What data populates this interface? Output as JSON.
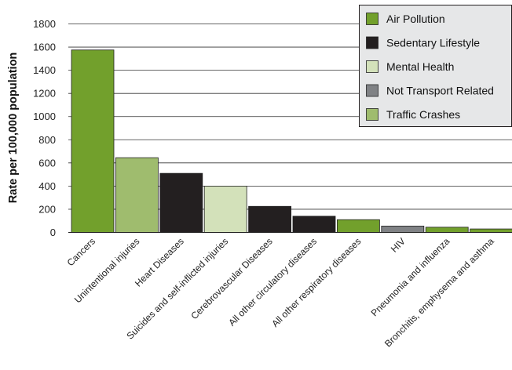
{
  "chart_data": {
    "type": "bar",
    "ylabel": "Rate per 100,000 population",
    "xlabel": "",
    "ylim": [
      0,
      1800
    ],
    "yticks": [
      0,
      200,
      400,
      600,
      800,
      1000,
      1200,
      1400,
      1600,
      1800
    ],
    "grid": "horizontal",
    "legend_position": "top-right",
    "legend": [
      {
        "label": "Air Pollution",
        "color": "#72a02c"
      },
      {
        "label": "Sedentary Lifestyle",
        "color": "#231f20"
      },
      {
        "label": "Mental Health",
        "color": "#d3e1ba"
      },
      {
        "label": "Not Transport Related",
        "color": "#808285"
      },
      {
        "label": "Traffic Crashes",
        "color": "#9fbc6e"
      }
    ],
    "categories": [
      "Cancers",
      "Unintentional injuries",
      "Heart Diseases",
      "Suicides and self-inflicted injuries",
      "Cerebrovascular Diseases",
      "All other circulatory diseases",
      "All other respiratory diseases",
      "HIV",
      "Pneumonia and influenza",
      "Bronchitis, emphysema and asthma"
    ],
    "values": [
      1575,
      645,
      510,
      400,
      225,
      140,
      110,
      55,
      45,
      30
    ],
    "bar_series": [
      "Air Pollution",
      "Traffic Crashes",
      "Sedentary Lifestyle",
      "Mental Health",
      "Sedentary Lifestyle",
      "Sedentary Lifestyle",
      "Air Pollution",
      "Not Transport Related",
      "Air Pollution",
      "Air Pollution"
    ]
  }
}
